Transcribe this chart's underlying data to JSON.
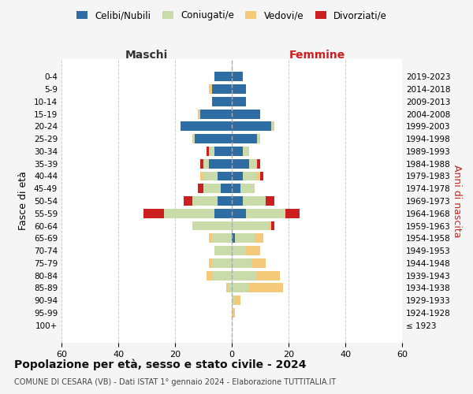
{
  "age_groups": [
    "100+",
    "95-99",
    "90-94",
    "85-89",
    "80-84",
    "75-79",
    "70-74",
    "65-69",
    "60-64",
    "55-59",
    "50-54",
    "45-49",
    "40-44",
    "35-39",
    "30-34",
    "25-29",
    "20-24",
    "15-19",
    "10-14",
    "5-9",
    "0-4"
  ],
  "birth_years": [
    "≤ 1923",
    "1924-1928",
    "1929-1933",
    "1934-1938",
    "1939-1943",
    "1944-1948",
    "1949-1953",
    "1954-1958",
    "1959-1963",
    "1964-1968",
    "1969-1973",
    "1974-1978",
    "1979-1983",
    "1984-1988",
    "1989-1993",
    "1994-1998",
    "1999-2003",
    "2004-2008",
    "2009-2013",
    "2014-2018",
    "2019-2023"
  ],
  "male": {
    "celibi": [
      0,
      0,
      0,
      0,
      0,
      0,
      0,
      0,
      0,
      6,
      5,
      4,
      5,
      8,
      6,
      13,
      18,
      11,
      7,
      7,
      6
    ],
    "coniugati": [
      0,
      0,
      0,
      1,
      7,
      7,
      6,
      7,
      14,
      18,
      9,
      6,
      5,
      2,
      2,
      1,
      0,
      0,
      0,
      0,
      0
    ],
    "vedovi": [
      0,
      0,
      0,
      1,
      2,
      1,
      0,
      1,
      0,
      0,
      0,
      0,
      1,
      0,
      0,
      0,
      0,
      1,
      0,
      1,
      0
    ],
    "divorziati": [
      0,
      0,
      0,
      0,
      0,
      0,
      0,
      0,
      0,
      7,
      3,
      2,
      0,
      1,
      1,
      0,
      0,
      0,
      0,
      0,
      0
    ]
  },
  "female": {
    "nubili": [
      0,
      0,
      0,
      0,
      0,
      0,
      0,
      1,
      0,
      5,
      4,
      3,
      4,
      6,
      4,
      9,
      14,
      10,
      5,
      5,
      4
    ],
    "coniugate": [
      0,
      0,
      1,
      6,
      9,
      7,
      5,
      7,
      13,
      14,
      8,
      5,
      5,
      3,
      2,
      1,
      1,
      0,
      0,
      0,
      0
    ],
    "vedove": [
      0,
      1,
      2,
      12,
      8,
      5,
      5,
      3,
      1,
      0,
      0,
      0,
      1,
      0,
      0,
      0,
      0,
      0,
      0,
      0,
      0
    ],
    "divorziate": [
      0,
      0,
      0,
      0,
      0,
      0,
      0,
      0,
      1,
      5,
      3,
      0,
      1,
      1,
      0,
      0,
      0,
      0,
      0,
      0,
      0
    ]
  },
  "colors": {
    "celibi_nubili": "#2e6da4",
    "coniugati": "#c8dba8",
    "vedovi": "#f5c97a",
    "divorziati": "#cc2020"
  },
  "xlim": 60,
  "title": "Popolazione per età, sesso e stato civile - 2024",
  "subtitle": "COMUNE DI CESARA (VB) - Dati ISTAT 1° gennaio 2024 - Elaborazione TUTTITALIA.IT",
  "xlabel_left": "Maschi",
  "xlabel_right": "Femmine",
  "ylabel_left": "Fasce di età",
  "ylabel_right": "Anni di nascita",
  "bg_color": "#f5f5f5",
  "plot_bg": "#ffffff"
}
